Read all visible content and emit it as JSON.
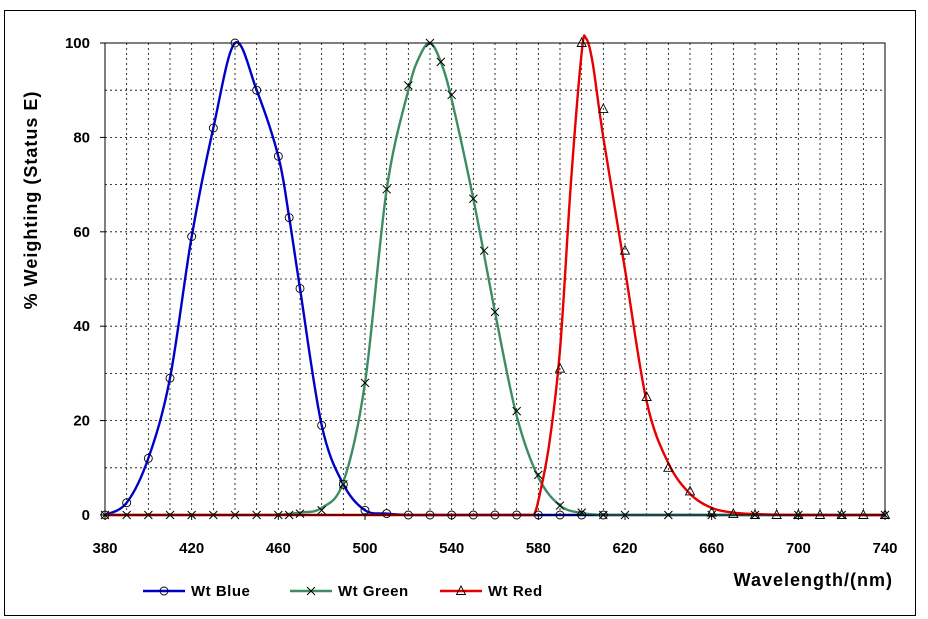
{
  "chart_data": {
    "type": "line",
    "title": "",
    "xlabel": "Wavelength/(nm)",
    "ylabel": "% Weighting (Status E)",
    "xlim": [
      380,
      740
    ],
    "ylim": [
      0,
      100
    ],
    "xticks": [
      380,
      420,
      460,
      500,
      540,
      580,
      620,
      660,
      700,
      740
    ],
    "xtick_labels": [
      "380",
      "420",
      "460",
      "500",
      "540",
      "580",
      "620",
      "660",
      "700",
      "740"
    ],
    "yticks": [
      0,
      20,
      40,
      60,
      80,
      100
    ],
    "ytick_labels": [
      "0",
      "20",
      "40",
      "60",
      "80",
      "100"
    ],
    "grid": true,
    "legend_position": "bottom",
    "series": [
      {
        "name": "Wt Blue",
        "color": "#0000c8",
        "marker": "circle",
        "x": [
          380,
          390,
          400,
          410,
          420,
          430,
          440,
          450,
          460,
          465,
          470,
          480,
          490,
          500,
          510,
          520,
          530,
          540,
          550,
          560,
          570,
          580,
          590,
          600,
          610
        ],
        "y": [
          0,
          2.6,
          12,
          29,
          59,
          82,
          100,
          90,
          76,
          63,
          48,
          19,
          6.5,
          1,
          0.3,
          0,
          0,
          0,
          0,
          0,
          0,
          0,
          0,
          0,
          0
        ]
      },
      {
        "name": "Wt Green",
        "color": "#3c8c64",
        "marker": "x",
        "x": [
          380,
          390,
          400,
          410,
          420,
          430,
          440,
          450,
          460,
          465,
          470,
          480,
          490,
          500,
          510,
          520,
          530,
          535,
          540,
          550,
          555,
          560,
          570,
          580,
          590,
          600,
          610,
          620,
          640,
          660,
          680,
          700,
          720,
          740
        ],
        "y": [
          0,
          0,
          0,
          0,
          0,
          0,
          0,
          0,
          0,
          0,
          0.3,
          1,
          6.5,
          28,
          69,
          91,
          100,
          96,
          89,
          67,
          56,
          43,
          22,
          8.5,
          2,
          0.5,
          0,
          0,
          0,
          0,
          0,
          0,
          0,
          0
        ],
        "curve_x": [
          460,
          470,
          480,
          490,
          500,
          510,
          520,
          525,
          530,
          535,
          540,
          550,
          560,
          570,
          580,
          590,
          600,
          610
        ],
        "curve_y": [
          0,
          0.5,
          1.5,
          7,
          28,
          69,
          90,
          97,
          100,
          96,
          88,
          67,
          43,
          21,
          8,
          2,
          0.4,
          0
        ]
      },
      {
        "name": "Wt Red",
        "color": "#e60000",
        "marker": "triangle",
        "x": [
          590,
          600,
          610,
          620,
          630,
          640,
          650,
          660,
          670,
          680,
          690,
          700,
          710,
          720,
          730,
          740
        ],
        "y": [
          31,
          100,
          86,
          56,
          25,
          10,
          5,
          0.5,
          0.2,
          0,
          0,
          0,
          0,
          0,
          0,
          0
        ],
        "curve_x": [
          578,
          580,
          585,
          590,
          595,
          600,
          602,
          605,
          610,
          620,
          630,
          640,
          650,
          660,
          670,
          680,
          700,
          740
        ],
        "curve_y": [
          0,
          3,
          15,
          35,
          70,
          98,
          101,
          96,
          80,
          52,
          24,
          11,
          4.5,
          1.5,
          0.5,
          0.2,
          0,
          0
        ]
      }
    ]
  }
}
